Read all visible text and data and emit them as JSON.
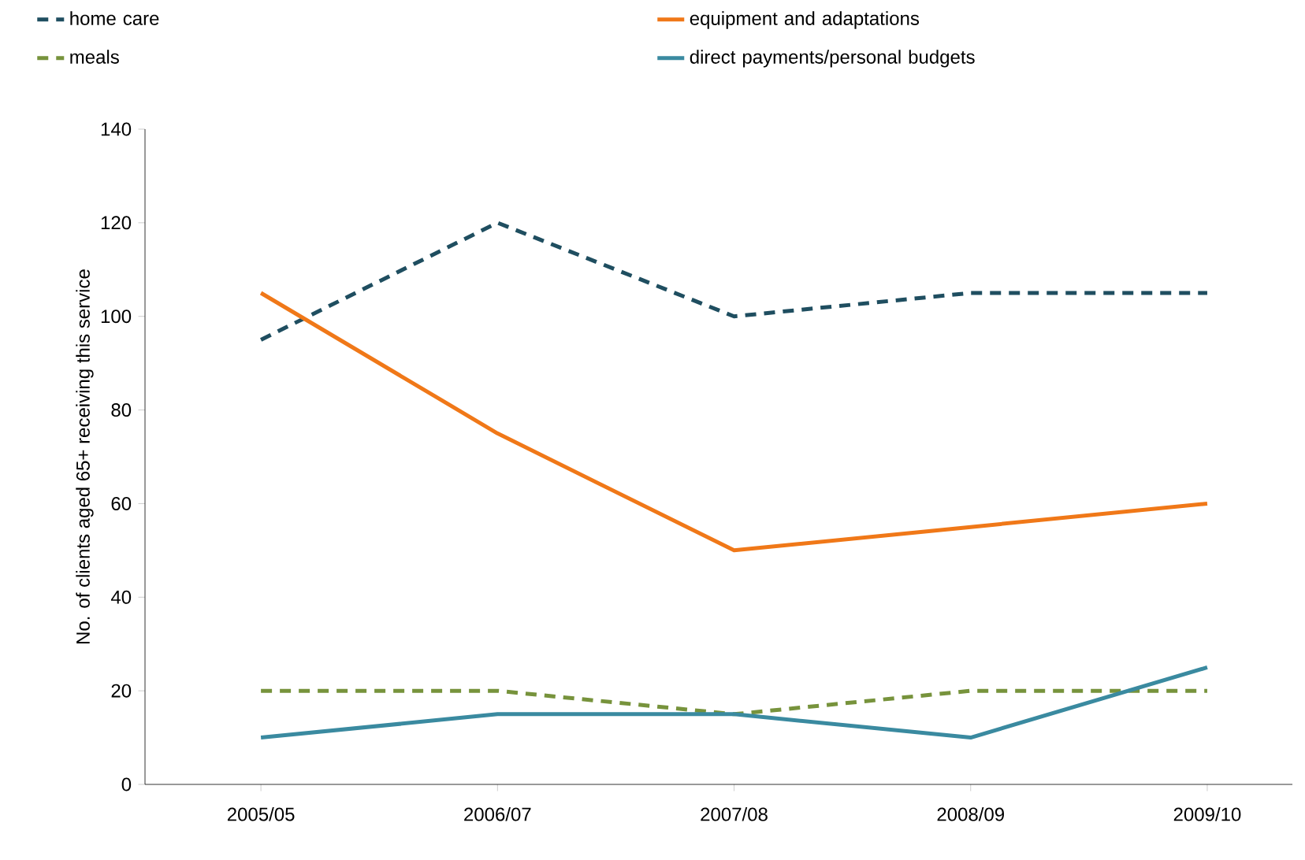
{
  "chart_data": {
    "type": "line",
    "ylabel": "No. of clients aged 65+ receiving this service",
    "categories": [
      "2005/05",
      "2006/07",
      "2007/08",
      "2008/09",
      "2009/10"
    ],
    "ylim": [
      0,
      140
    ],
    "yticks": [
      0,
      20,
      40,
      60,
      80,
      100,
      120,
      140
    ],
    "legend": "top",
    "grid": false,
    "series": [
      {
        "name": "home care",
        "color": "#1f4e60",
        "line_style": "dashed",
        "values": [
          95,
          120,
          100,
          105,
          105
        ]
      },
      {
        "name": "equipment and adaptations",
        "color": "#f07818",
        "line_style": "solid",
        "values": [
          105,
          75,
          50,
          55,
          60
        ]
      },
      {
        "name": "meals",
        "color": "#77933c",
        "line_style": "dashed",
        "values": [
          20,
          20,
          15,
          20,
          20
        ]
      },
      {
        "name": "direct payments/personal budgets",
        "color": "#3a8aa0",
        "line_style": "solid",
        "values": [
          10,
          15,
          15,
          10,
          25
        ]
      }
    ]
  }
}
